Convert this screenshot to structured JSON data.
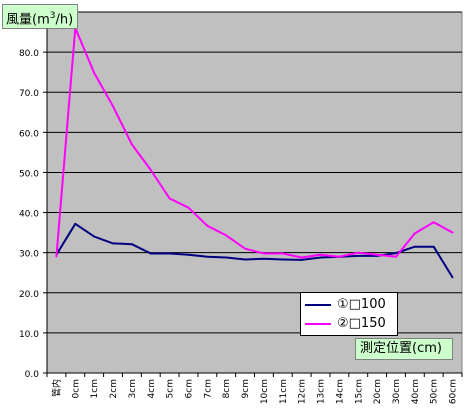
{
  "chart_data": {
    "type": "line",
    "ylabel_text": "風量(m",
    "ylabel_sup": "3",
    "ylabel_tail": "/h)",
    "xlabel": "測定位置(cm)",
    "ylim": [
      0,
      90
    ],
    "yticks": [
      "0.0",
      "10.0",
      "20.0",
      "30.0",
      "40.0",
      "50.0",
      "60.0",
      "70.0",
      "80.0",
      "90.0"
    ],
    "categories": [
      "管内",
      "0cm",
      "1cm",
      "2cm",
      "3cm",
      "4cm",
      "5cm",
      "6cm",
      "7cm",
      "8cm",
      "9cm",
      "10cm",
      "11cm",
      "12cm",
      "13cm",
      "14cm",
      "15cm",
      "20cm",
      "30cm",
      "40cm",
      "50cm",
      "60cm"
    ],
    "grid": true,
    "legend_position": "bottom-right",
    "series": [
      {
        "name": "①□100",
        "color": "#000080",
        "values": [
          29.5,
          37.2,
          34.0,
          32.3,
          32.1,
          29.8,
          29.8,
          29.5,
          29.0,
          28.8,
          28.3,
          28.5,
          28.3,
          28.2,
          28.8,
          29.0,
          29.2,
          29.2,
          29.9,
          31.5,
          31.5,
          23.8
        ]
      },
      {
        "name": "②□150",
        "color": "#ff00ff",
        "values": [
          29.0,
          86.0,
          74.8,
          66.5,
          57.0,
          50.6,
          43.5,
          41.2,
          36.7,
          34.3,
          31.0,
          29.8,
          29.8,
          28.8,
          29.5,
          29.0,
          30.0,
          29.5,
          29.0,
          34.8,
          37.6,
          35.0
        ]
      }
    ]
  }
}
